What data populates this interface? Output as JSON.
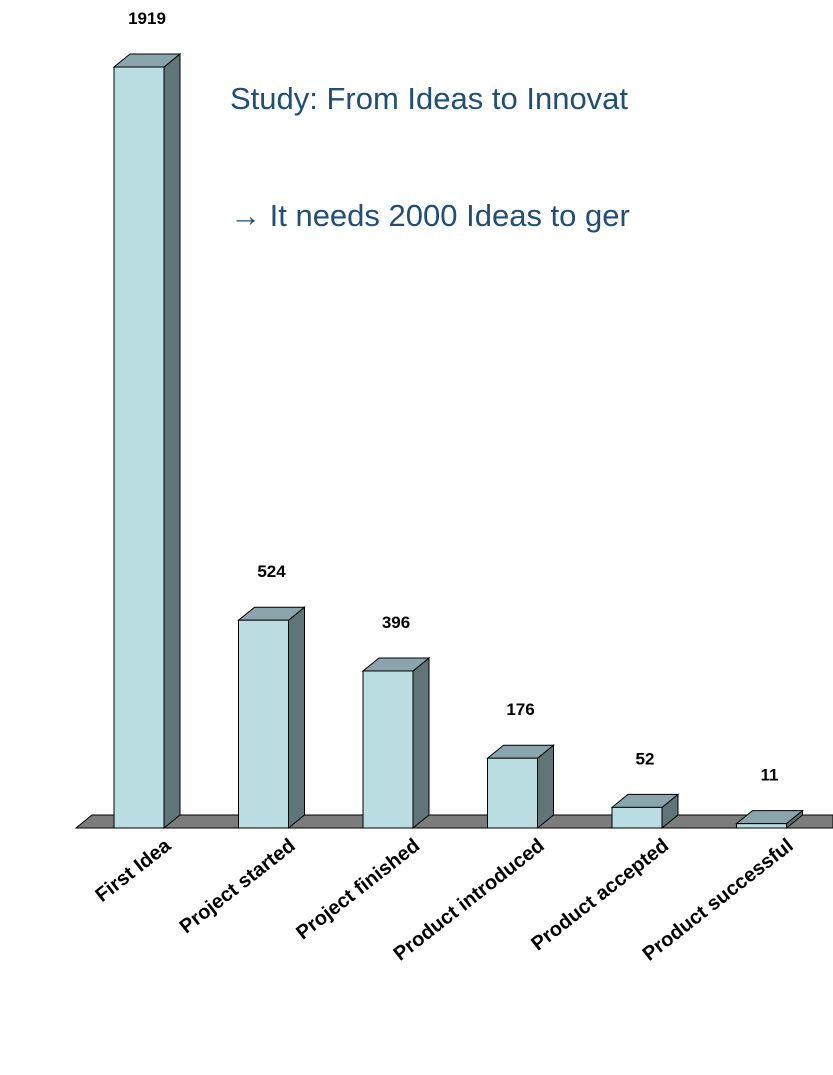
{
  "headline": {
    "line1": "Study: From Ideas to Innovat",
    "line2": "→ It needs 2000 Ideas to ger"
  },
  "chart_data": {
    "type": "bar",
    "title": "",
    "xlabel": "",
    "ylabel": "",
    "categories": [
      "First Idea",
      "Project started",
      "Project finished",
      "Product introduced",
      "Product accepted",
      "Product successful"
    ],
    "values": [
      1919,
      524,
      396,
      176,
      52,
      11
    ],
    "data_labels": [
      "1919",
      "524",
      "396",
      "176",
      "52",
      "11"
    ],
    "ylim": [
      0,
      1919
    ],
    "grid": false,
    "legend": "none",
    "style": "3d-column",
    "colors": {
      "bar_front": "#b9dde1",
      "bar_top": "#8aa5ab",
      "bar_side": "#5f7578",
      "floor": "#7c7c7c",
      "outline": "#000000",
      "headline_text": "#1f4e79"
    }
  }
}
